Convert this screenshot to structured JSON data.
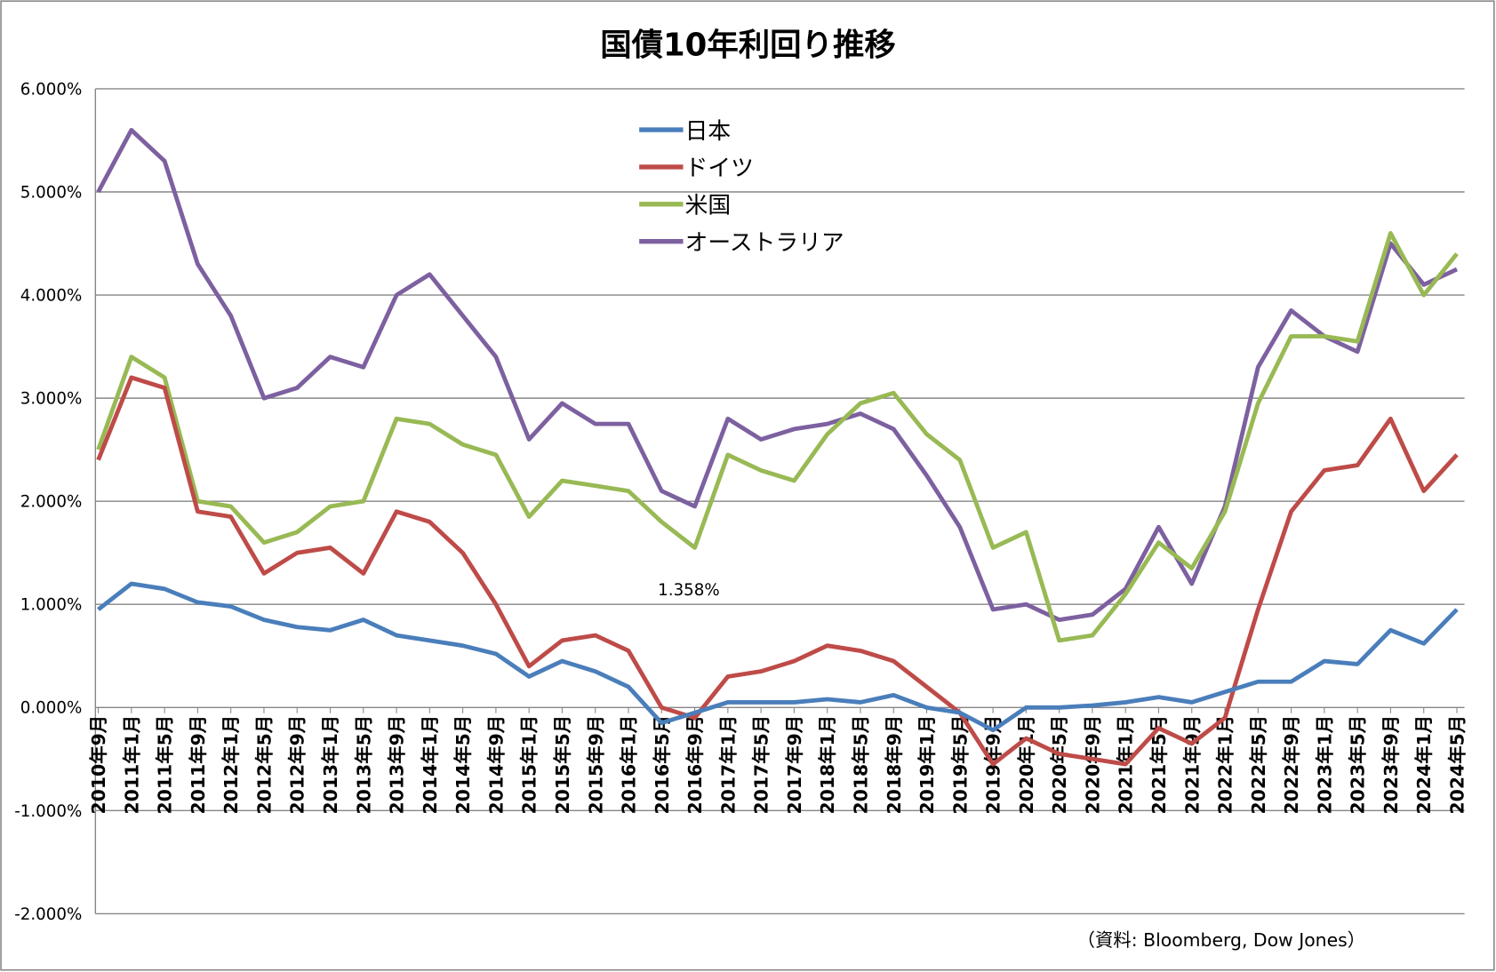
{
  "chart_data": {
    "type": "line",
    "title": "国債10年利回り推移",
    "categories": [
      "2010年9月",
      "2011年1月",
      "2011年5月",
      "2011年9月",
      "2012年1月",
      "2012年5月",
      "2012年9月",
      "2013年1月",
      "2013年5月",
      "2013年9月",
      "2014年1月",
      "2014年5月",
      "2014年9月",
      "2015年1月",
      "2015年5月",
      "2015年9月",
      "2016年1月",
      "2016年5月",
      "2016年9月",
      "2017年1月",
      "2017年5月",
      "2017年9月",
      "2018年1月",
      "2018年5月",
      "2018年9月",
      "2019年1月",
      "2019年5月",
      "2019年9月",
      "2020年1月",
      "2020年5月",
      "2020年9月",
      "2021年1月",
      "2021年5月",
      "2021年9月",
      "2022年1月",
      "2022年5月",
      "2022年9月",
      "2023年1月",
      "2023年5月",
      "2023年9月",
      "2024年1月",
      "2024年5月"
    ],
    "series": [
      {
        "name": "日本",
        "color": "#4a7ebb",
        "values": [
          0.95,
          1.2,
          1.15,
          1.02,
          0.98,
          0.85,
          0.78,
          0.75,
          0.85,
          0.7,
          0.65,
          0.6,
          0.52,
          0.3,
          0.45,
          0.35,
          0.2,
          -0.15,
          -0.05,
          0.05,
          0.05,
          0.05,
          0.08,
          0.05,
          0.12,
          0.0,
          -0.05,
          -0.22,
          0.0,
          0.0,
          0.02,
          0.05,
          0.1,
          0.05,
          0.15,
          0.25,
          0.25,
          0.45,
          0.42,
          0.75,
          0.62,
          0.95
        ]
      },
      {
        "name": "ドイツ",
        "color": "#be4b48",
        "values": [
          2.4,
          3.2,
          3.1,
          1.9,
          1.85,
          1.3,
          1.5,
          1.55,
          1.3,
          1.9,
          1.8,
          1.5,
          1.0,
          0.4,
          0.65,
          0.7,
          0.55,
          0.0,
          -0.1,
          0.3,
          0.35,
          0.45,
          0.6,
          0.55,
          0.45,
          0.2,
          -0.05,
          -0.55,
          -0.3,
          -0.45,
          -0.5,
          -0.55,
          -0.2,
          -0.35,
          -0.1,
          0.95,
          1.9,
          2.3,
          2.35,
          2.8,
          2.1,
          2.45
        ]
      },
      {
        "name": "米国",
        "color": "#98b954",
        "values": [
          2.5,
          3.4,
          3.2,
          2.0,
          1.95,
          1.6,
          1.7,
          1.95,
          2.0,
          2.8,
          2.75,
          2.55,
          2.45,
          1.85,
          2.2,
          2.15,
          2.1,
          1.8,
          1.55,
          2.45,
          2.3,
          2.2,
          2.65,
          2.95,
          3.05,
          2.65,
          2.4,
          1.55,
          1.7,
          0.65,
          0.7,
          1.1,
          1.6,
          1.35,
          1.9,
          2.95,
          3.6,
          3.6,
          3.55,
          4.6,
          4.0,
          4.4
        ]
      },
      {
        "name": "オーストラリア",
        "color": "#7d60a0",
        "values": [
          5.0,
          5.6,
          5.3,
          4.3,
          3.8,
          3.0,
          3.1,
          3.4,
          3.3,
          4.0,
          4.2,
          3.8,
          3.4,
          2.6,
          2.95,
          2.75,
          2.75,
          2.1,
          1.95,
          2.8,
          2.6,
          2.7,
          2.75,
          2.85,
          2.7,
          2.25,
          1.75,
          0.95,
          1.0,
          0.85,
          0.9,
          1.15,
          1.75,
          1.2,
          1.95,
          3.3,
          3.85,
          3.6,
          3.45,
          4.5,
          4.1,
          4.25
        ]
      }
    ],
    "ylim": [
      -2,
      6
    ],
    "yticks": [
      {
        "value": -2,
        "label": "-2.000%"
      },
      {
        "value": -1,
        "label": "-1.000%"
      },
      {
        "value": 0,
        "label": "0.000%"
      },
      {
        "value": 1,
        "label": "1.000%"
      },
      {
        "value": 2,
        "label": "2.000%"
      },
      {
        "value": 3,
        "label": "3.000%"
      },
      {
        "value": 4,
        "label": "4.000%"
      },
      {
        "value": 5,
        "label": "5.000%"
      },
      {
        "value": 6,
        "label": "6.000%"
      }
    ],
    "grid": true,
    "annotations": [
      "1.358%",
      "（資料: Bloomberg, Dow Jones）"
    ]
  }
}
